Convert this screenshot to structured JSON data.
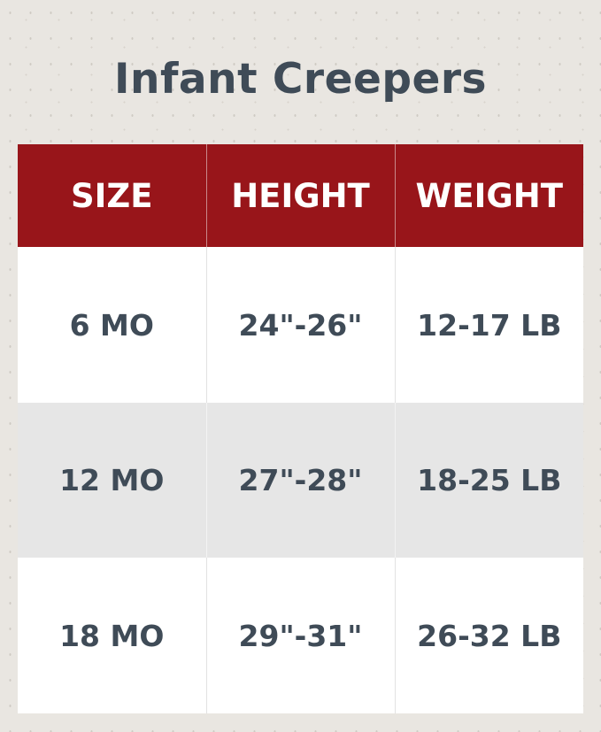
{
  "title": "Infant Creepers",
  "colors": {
    "header_bg": "#98151a",
    "text": "#3f4b57",
    "alt_row": "#e6e6e6"
  },
  "table": {
    "headers": [
      "SIZE",
      "HEIGHT",
      "WEIGHT"
    ],
    "rows": [
      [
        "6 MO",
        "24\"-26\"",
        "12-17 LB"
      ],
      [
        "12 MO",
        "27\"-28\"",
        "18-25 LB"
      ],
      [
        "18 MO",
        "29\"-31\"",
        "26-32 LB"
      ]
    ]
  }
}
